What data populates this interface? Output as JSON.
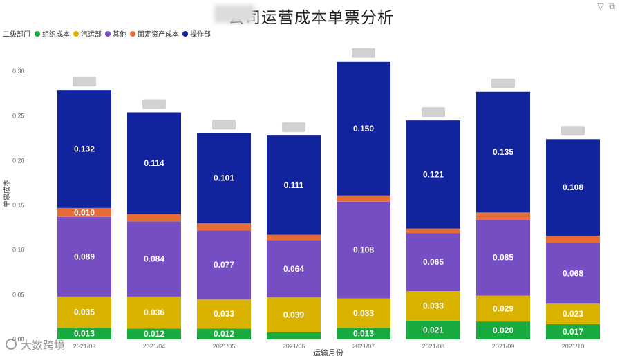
{
  "title": "公司运营成本单票分析",
  "toolbar": {
    "filter_icon": "filter-icon",
    "focus_icon": "focus-mode-icon",
    "filter_glyph": "▽",
    "focus_glyph": "⧉"
  },
  "legend": {
    "title": "二级部门",
    "items": [
      {
        "name": "组织成本",
        "color": "#1aab40"
      },
      {
        "name": "汽运部",
        "color": "#d9b300"
      },
      {
        "name": "其他",
        "color": "#744ec2"
      },
      {
        "name": "固定资产成本",
        "color": "#e66c37"
      },
      {
        "name": "操作部",
        "color": "#12239e"
      }
    ]
  },
  "watermark": "大数跨境",
  "chart_data": {
    "type": "bar",
    "stacked": true,
    "title": "公司运营成本单票分析",
    "xlabel": "运输月份",
    "ylabel": "单票成本",
    "ylim": [
      0,
      0.3
    ],
    "yticks": [
      "0.00",
      "0.05",
      "0.10",
      "0.15",
      "0.20",
      "0.25",
      "0.30"
    ],
    "grid": false,
    "legend_position": "top-left",
    "categories": [
      "2021/03",
      "2021/04",
      "2021/05",
      "2021/06",
      "2021/07",
      "2021/08",
      "2021/09",
      "2021/10"
    ],
    "series": [
      {
        "name": "组织成本",
        "color": "#1aab40",
        "values": [
          0.013,
          0.012,
          0.012,
          0.008,
          0.013,
          0.021,
          0.02,
          0.017
        ],
        "labels": [
          "0.013",
          "0.012",
          "0.012",
          "",
          "0.013",
          "0.021",
          "0.020",
          "0.017"
        ]
      },
      {
        "name": "汽运部",
        "color": "#d9b300",
        "values": [
          0.035,
          0.036,
          0.033,
          0.039,
          0.033,
          0.033,
          0.029,
          0.023
        ],
        "labels": [
          "0.035",
          "0.036",
          "0.033",
          "0.039",
          "0.033",
          "0.033",
          "0.029",
          "0.023"
        ]
      },
      {
        "name": "其他",
        "color": "#744ec2",
        "values": [
          0.089,
          0.084,
          0.077,
          0.064,
          0.108,
          0.065,
          0.085,
          0.068
        ],
        "labels": [
          "0.089",
          "0.084",
          "0.077",
          "0.064",
          "0.108",
          "0.065",
          "0.085",
          "0.068"
        ]
      },
      {
        "name": "固定资产成本",
        "color": "#e66c37",
        "values": [
          0.01,
          0.008,
          0.008,
          0.006,
          0.007,
          0.005,
          0.008,
          0.008
        ],
        "labels": [
          "0.010",
          "",
          "",
          "",
          "",
          "",
          "",
          ""
        ]
      },
      {
        "name": "操作部",
        "color": "#12239e",
        "values": [
          0.132,
          0.114,
          0.101,
          0.111,
          0.15,
          0.121,
          0.135,
          0.108
        ],
        "labels": [
          "0.132",
          "0.114",
          "0.101",
          "0.111",
          "0.150",
          "0.121",
          "0.135",
          "0.108"
        ]
      }
    ]
  }
}
